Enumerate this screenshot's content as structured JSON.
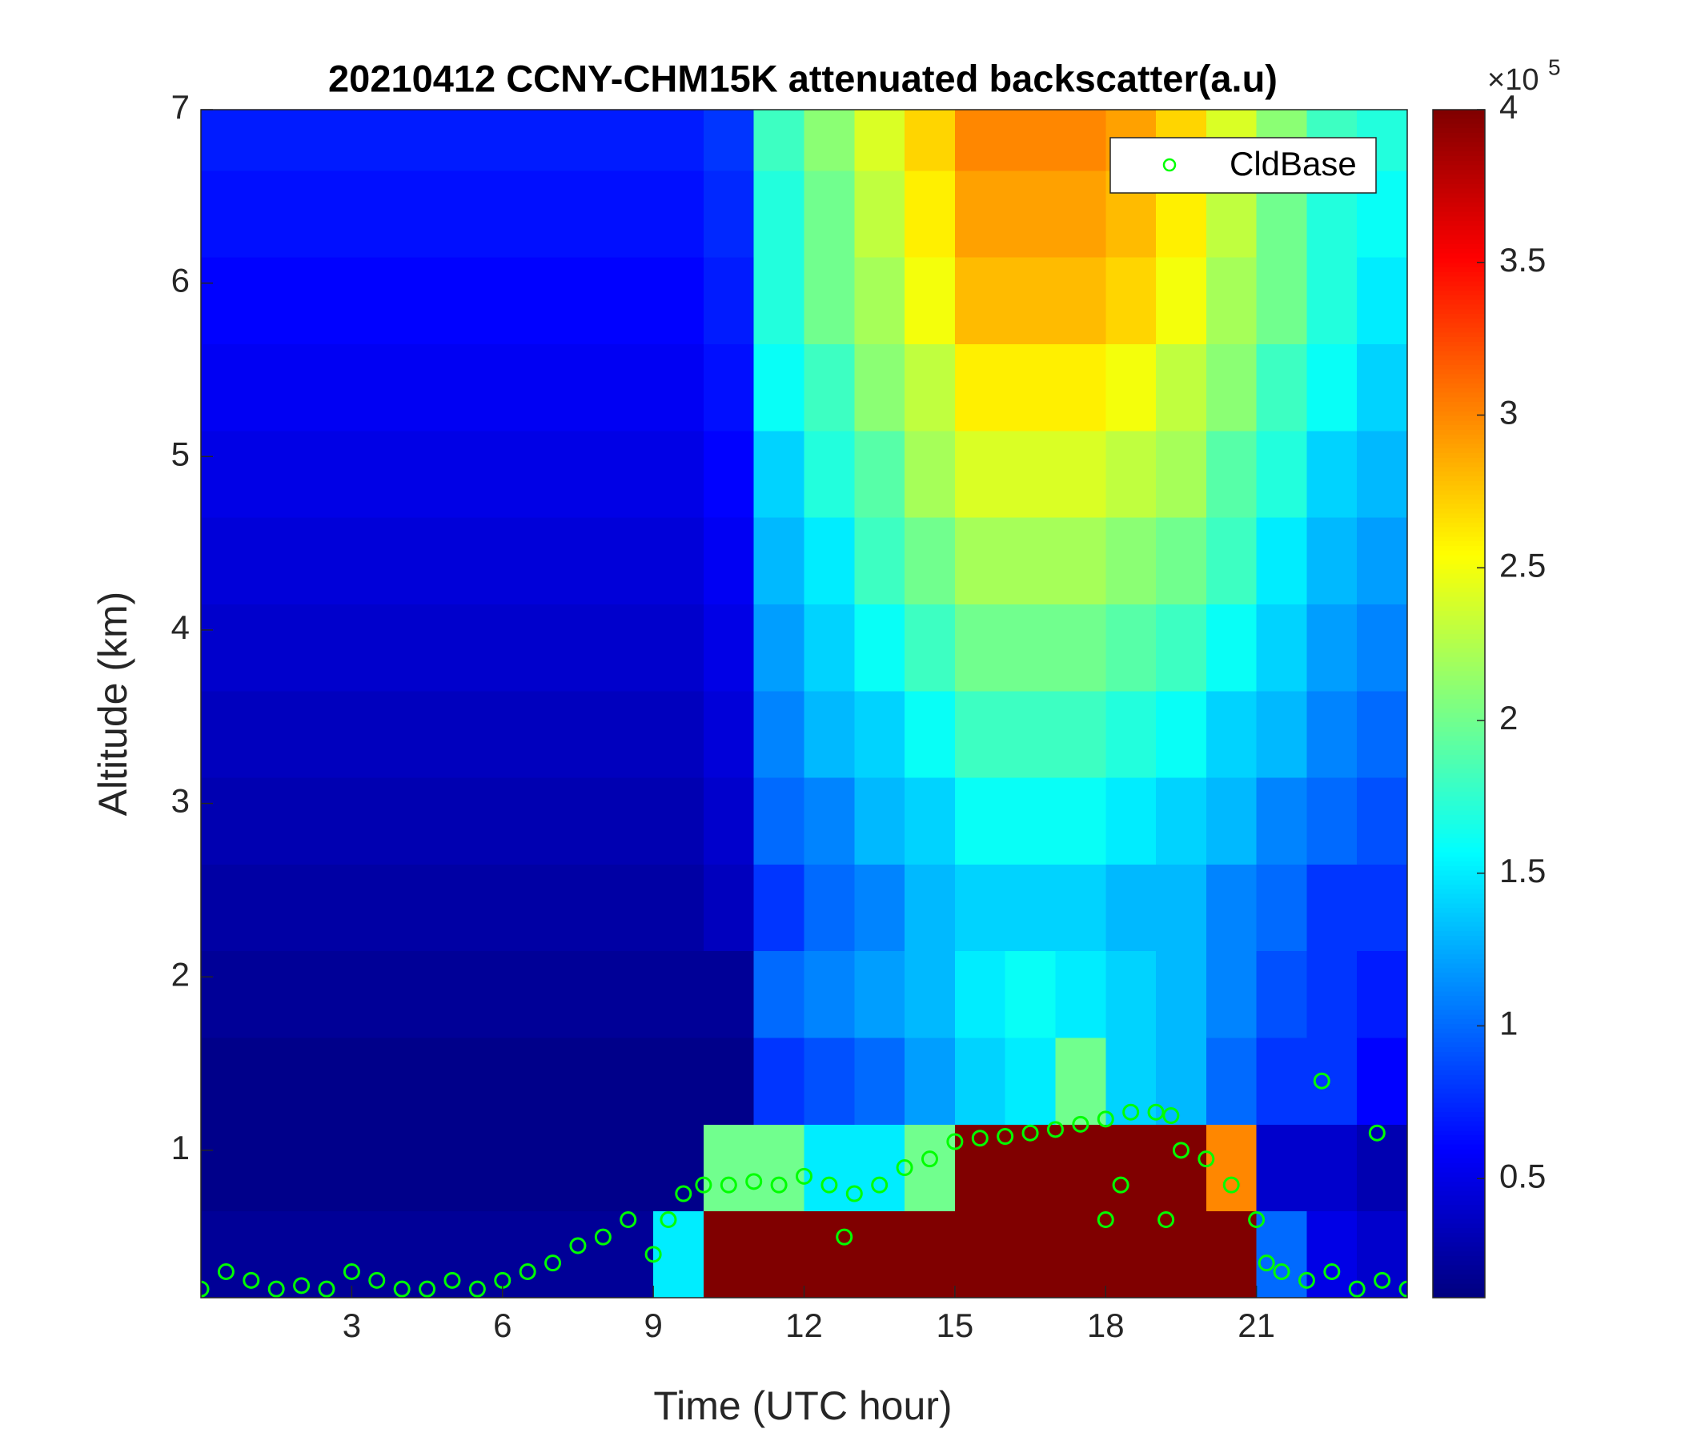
{
  "chart_data": {
    "type": "heatmap",
    "title": "20210412 CCNY-CHM15K attenuated backscatter(a.u)",
    "x_label": "Time (UTC hour)",
    "y_label": "Altitude (km)",
    "xlim": [
      0,
      24
    ],
    "ylim": [
      0.15,
      7
    ],
    "xticks": [
      3,
      6,
      9,
      12,
      15,
      18,
      21
    ],
    "yticks": [
      1,
      2,
      3,
      4,
      5,
      6,
      7
    ],
    "colormap": "jet",
    "clim": [
      0.11,
      4
    ],
    "colorbar_ticks": [
      0.5,
      1,
      1.5,
      2,
      2.5,
      3,
      3.5,
      4
    ],
    "colorbar_multiplier": {
      "base": "×10",
      "exponent": "5"
    },
    "legend": "northeast",
    "heatmap": {
      "x": [
        0.5,
        1.5,
        2.5,
        3.5,
        4.5,
        5.5,
        6.5,
        7.5,
        8.5,
        9.5,
        10.5,
        11.5,
        12.5,
        13.5,
        14.5,
        15.5,
        16.5,
        17.5,
        18.5,
        19.5,
        20.5,
        21.5,
        22.5,
        23.5
      ],
      "y": [
        0.4,
        0.9,
        1.4,
        1.9,
        2.4,
        2.9,
        3.4,
        3.9,
        4.4,
        4.9,
        5.4,
        5.9,
        6.4,
        6.9
      ],
      "z": [
        [
          0.2,
          0.2,
          0.2,
          0.2,
          0.2,
          0.2,
          0.2,
          0.2,
          0.2,
          1.5,
          4,
          4,
          4,
          4,
          4,
          4,
          4,
          4,
          4,
          4,
          4,
          1.0,
          0.5,
          0.4
        ],
        [
          0.15,
          0.15,
          0.15,
          0.15,
          0.15,
          0.15,
          0.15,
          0.15,
          0.15,
          0.15,
          2,
          2,
          1.5,
          1.5,
          2,
          4,
          4,
          4,
          4,
          4,
          3,
          0.4,
          0.4,
          0.3
        ],
        [
          0.15,
          0.15,
          0.15,
          0.15,
          0.15,
          0.15,
          0.15,
          0.15,
          0.15,
          0.15,
          0.15,
          0.8,
          0.9,
          1.0,
          1.2,
          1.4,
          1.5,
          2.0,
          1.4,
          1.3,
          1.0,
          0.8,
          0.8,
          0.6
        ],
        [
          0.2,
          0.2,
          0.2,
          0.2,
          0.2,
          0.2,
          0.2,
          0.2,
          0.2,
          0.2,
          0.2,
          1.0,
          1.1,
          1.2,
          1.3,
          1.5,
          1.6,
          1.5,
          1.4,
          1.3,
          1.1,
          0.9,
          0.8,
          0.7
        ],
        [
          0.25,
          0.25,
          0.25,
          0.25,
          0.25,
          0.25,
          0.25,
          0.25,
          0.25,
          0.25,
          0.35,
          0.8,
          1.0,
          1.1,
          1.3,
          1.4,
          1.4,
          1.4,
          1.3,
          1.3,
          1.1,
          1.0,
          0.8,
          0.8
        ],
        [
          0.3,
          0.3,
          0.3,
          0.3,
          0.3,
          0.3,
          0.3,
          0.3,
          0.3,
          0.3,
          0.4,
          1.0,
          1.1,
          1.3,
          1.4,
          1.6,
          1.6,
          1.6,
          1.5,
          1.4,
          1.3,
          1.1,
          1.0,
          0.9
        ],
        [
          0.35,
          0.35,
          0.35,
          0.35,
          0.35,
          0.35,
          0.35,
          0.35,
          0.35,
          0.35,
          0.45,
          1.1,
          1.3,
          1.4,
          1.6,
          1.8,
          1.8,
          1.8,
          1.7,
          1.6,
          1.4,
          1.3,
          1.1,
          1.0
        ],
        [
          0.4,
          0.4,
          0.4,
          0.4,
          0.4,
          0.4,
          0.4,
          0.4,
          0.4,
          0.4,
          0.5,
          1.2,
          1.4,
          1.6,
          1.8,
          2.0,
          2.0,
          2.0,
          1.9,
          1.8,
          1.6,
          1.4,
          1.2,
          1.1
        ],
        [
          0.45,
          0.45,
          0.45,
          0.45,
          0.45,
          0.45,
          0.45,
          0.45,
          0.45,
          0.45,
          0.55,
          1.3,
          1.5,
          1.8,
          2.0,
          2.2,
          2.2,
          2.2,
          2.1,
          2.0,
          1.8,
          1.5,
          1.3,
          1.2
        ],
        [
          0.5,
          0.5,
          0.5,
          0.5,
          0.5,
          0.5,
          0.5,
          0.5,
          0.5,
          0.5,
          0.6,
          1.4,
          1.7,
          1.9,
          2.2,
          2.4,
          2.4,
          2.4,
          2.3,
          2.2,
          1.9,
          1.7,
          1.4,
          1.3
        ],
        [
          0.55,
          0.55,
          0.55,
          0.55,
          0.55,
          0.55,
          0.55,
          0.55,
          0.55,
          0.55,
          0.65,
          1.6,
          1.8,
          2.1,
          2.3,
          2.6,
          2.6,
          2.6,
          2.5,
          2.3,
          2.1,
          1.8,
          1.6,
          1.4
        ],
        [
          0.6,
          0.6,
          0.6,
          0.6,
          0.6,
          0.6,
          0.6,
          0.6,
          0.6,
          0.6,
          0.7,
          1.7,
          2.0,
          2.2,
          2.5,
          2.8,
          2.8,
          2.8,
          2.7,
          2.5,
          2.2,
          2.0,
          1.7,
          1.5
        ],
        [
          0.65,
          0.65,
          0.65,
          0.65,
          0.65,
          0.65,
          0.65,
          0.65,
          0.65,
          0.65,
          0.75,
          1.7,
          2.0,
          2.3,
          2.6,
          2.9,
          2.9,
          2.9,
          2.8,
          2.6,
          2.3,
          2.0,
          1.7,
          1.6
        ],
        [
          0.7,
          0.7,
          0.7,
          0.7,
          0.7,
          0.7,
          0.7,
          0.7,
          0.7,
          0.7,
          0.8,
          1.8,
          2.1,
          2.4,
          2.7,
          3.0,
          3.0,
          3.0,
          2.9,
          2.7,
          2.4,
          2.1,
          1.8,
          1.7
        ]
      ]
    },
    "series": [
      {
        "name": "CldBase",
        "color": "#00ff00",
        "marker": "o",
        "x": [
          0,
          0.5,
          1,
          1.5,
          2,
          2.5,
          3,
          3.5,
          4,
          4.5,
          5,
          5.5,
          6,
          6.5,
          7,
          7.5,
          8,
          8.5,
          9,
          9.3,
          9.6,
          10,
          10.5,
          11,
          11.5,
          12,
          12.5,
          12.8,
          13,
          13.5,
          14,
          14.5,
          15,
          15.5,
          16,
          16.5,
          17,
          17.5,
          18,
          18,
          18.3,
          18.5,
          19,
          19.2,
          19.3,
          19.5,
          20,
          20.5,
          21,
          21.2,
          21.5,
          22,
          22.3,
          22.5,
          23,
          23.4,
          23.5,
          24
        ],
        "y": [
          0.2,
          0.3,
          0.25,
          0.2,
          0.22,
          0.2,
          0.3,
          0.25,
          0.2,
          0.2,
          0.25,
          0.2,
          0.25,
          0.3,
          0.35,
          0.45,
          0.5,
          0.6,
          0.4,
          0.6,
          0.75,
          0.8,
          0.8,
          0.82,
          0.8,
          0.85,
          0.8,
          0.5,
          0.75,
          0.8,
          0.9,
          0.95,
          1.05,
          1.07,
          1.08,
          1.1,
          1.12,
          1.15,
          1.18,
          0.6,
          0.8,
          1.22,
          1.22,
          0.6,
          1.2,
          1.0,
          0.95,
          0.8,
          0.6,
          0.35,
          0.3,
          0.25,
          1.4,
          0.3,
          0.2,
          1.1,
          0.25,
          0.2
        ]
      }
    ]
  }
}
